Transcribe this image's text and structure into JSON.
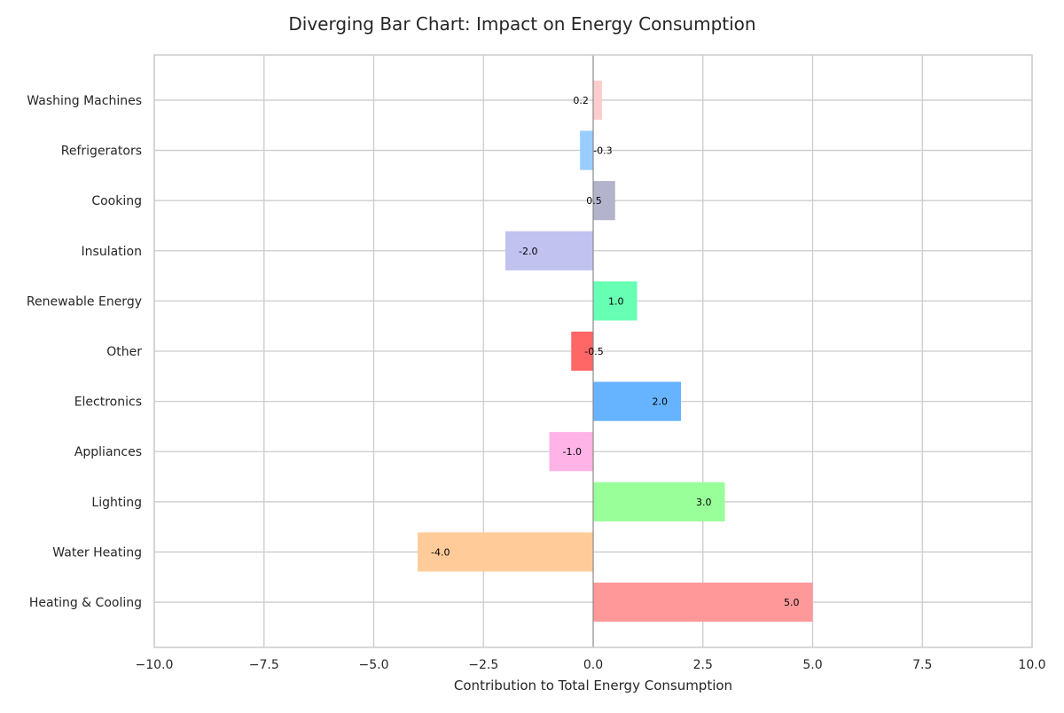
{
  "chart_data": {
    "type": "bar",
    "orientation": "horizontal",
    "title": "Diverging Bar Chart: Impact on Energy Consumption",
    "xlabel": "Contribution to Total Energy Consumption",
    "ylabel": "",
    "xlim": [
      -10,
      10
    ],
    "xticks": [
      -10,
      -7.5,
      -5,
      -2.5,
      0,
      2.5,
      5,
      7.5,
      10
    ],
    "xtick_labels": [
      "−10.0",
      "−7.5",
      "−5.0",
      "−2.5",
      "0.0",
      "2.5",
      "5.0",
      "7.5",
      "10.0"
    ],
    "grid": true,
    "categories": [
      "Heating & Cooling",
      "Water Heating",
      "Lighting",
      "Appliances",
      "Electronics",
      "Other",
      "Renewable Energy",
      "Insulation",
      "Cooking",
      "Refrigerators",
      "Washing Machines"
    ],
    "values": [
      5.0,
      -4.0,
      3.0,
      -1.0,
      2.0,
      -0.5,
      1.0,
      -2.0,
      0.5,
      -0.3,
      0.2
    ],
    "value_labels": [
      "5.0",
      "-4.0",
      "3.0",
      "-1.0",
      "2.0",
      "-0.5",
      "1.0",
      "-2.0",
      "0.5",
      "-0.3",
      "0.2"
    ],
    "colors": [
      "#ff9999",
      "#ffcc99",
      "#99ff99",
      "#ffb3e6",
      "#66b3ff",
      "#ff6666",
      "#66ffb3",
      "#c2c2f0",
      "#b3b3cc",
      "#99ccff",
      "#ffcccc"
    ]
  }
}
